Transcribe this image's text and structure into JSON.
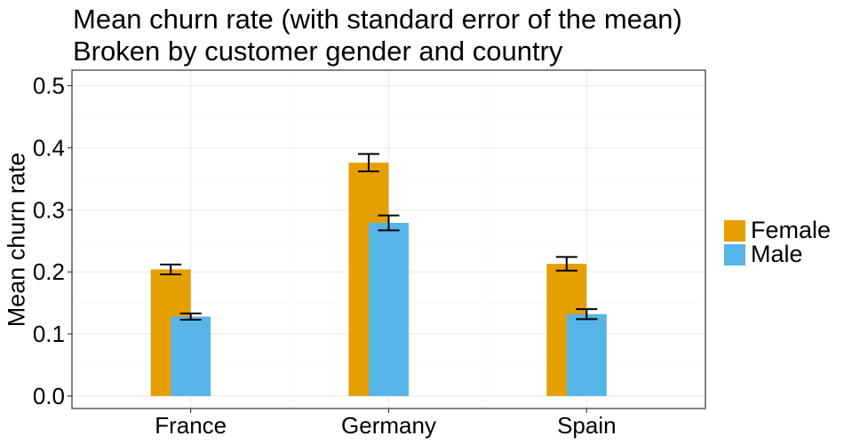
{
  "chart_data": {
    "type": "bar",
    "title": "Mean churn rate (with standard error of the mean)",
    "subtitle": "Broken by customer gender and country",
    "xlabel": "",
    "ylabel": "Mean churn rate",
    "categories": [
      "France",
      "Germany",
      "Spain"
    ],
    "series": [
      {
        "name": "Female",
        "color": "#E69F00",
        "values": [
          0.204,
          0.376,
          0.213
        ],
        "se": [
          0.008,
          0.014,
          0.011
        ]
      },
      {
        "name": "Male",
        "color": "#56B4E9",
        "values": [
          0.128,
          0.279,
          0.132
        ],
        "se": [
          0.005,
          0.012,
          0.008
        ]
      }
    ],
    "ylim": [
      -0.02,
      0.525
    ],
    "yticks": [
      0.0,
      0.1,
      0.2,
      0.3,
      0.4,
      0.5
    ],
    "ytick_labels": [
      "0.0",
      "0.1",
      "0.2",
      "0.3",
      "0.4",
      "0.5"
    ],
    "grid": true,
    "legend_position": "right"
  }
}
